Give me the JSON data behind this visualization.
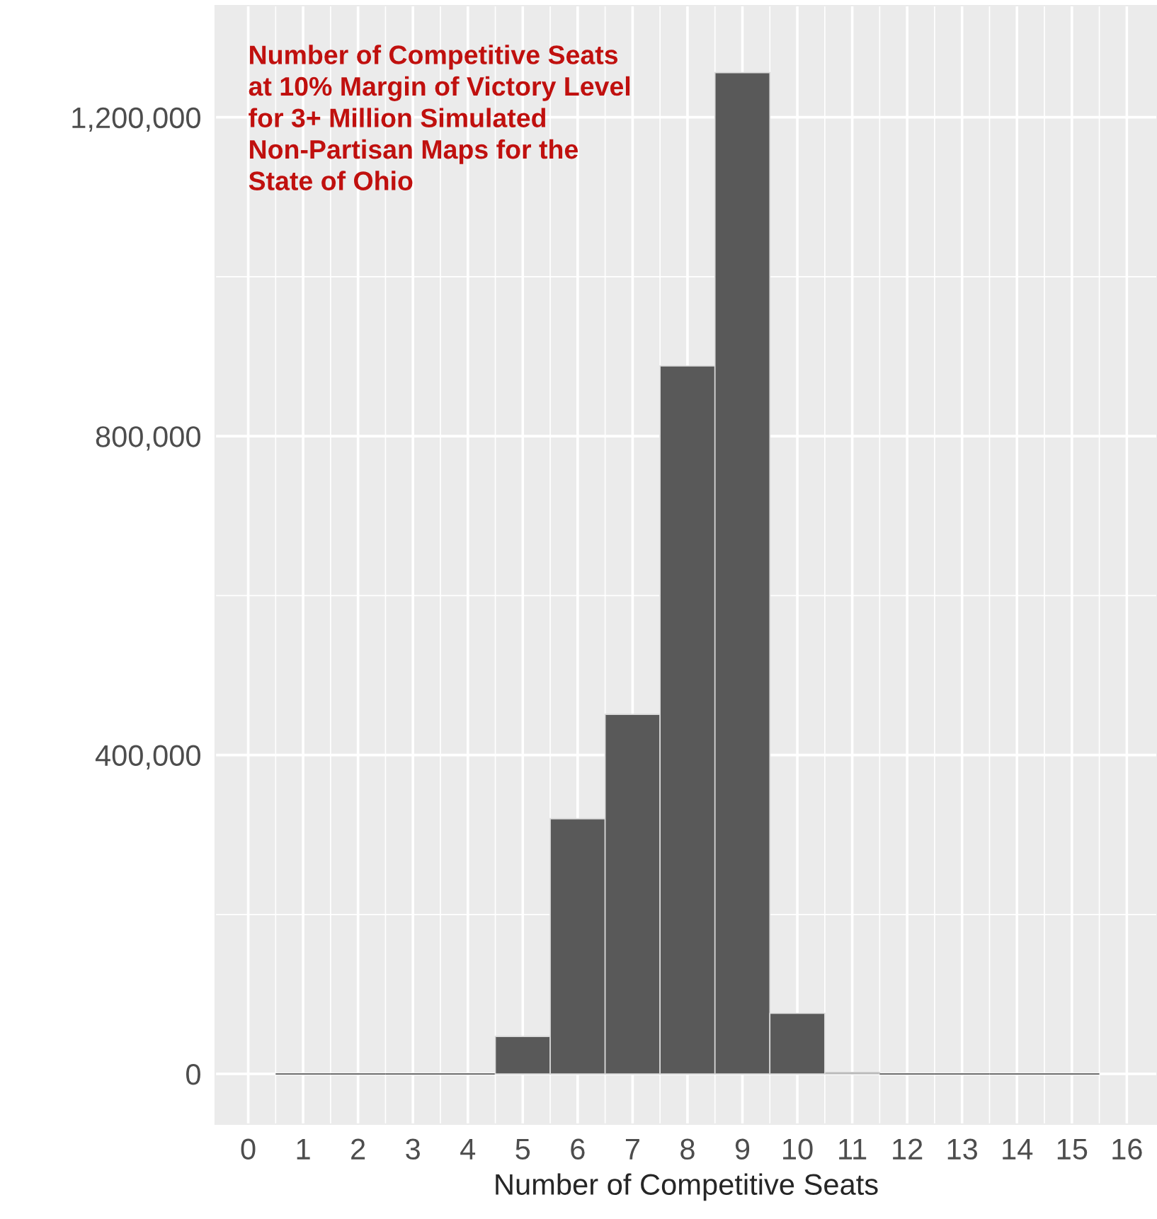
{
  "chart_data": {
    "type": "histogram",
    "bins": [
      0.5,
      1.5,
      2.5,
      3.5,
      4.5,
      5.5,
      6.5,
      7.5,
      8.5,
      9.5,
      10.5,
      11.5,
      12.5,
      13.5,
      14.5,
      15.5
    ],
    "values": [
      0,
      0,
      0,
      0,
      47000,
      320000,
      451000,
      888000,
      1256000,
      76000,
      2000,
      0,
      0,
      0,
      0
    ],
    "color": "#595959",
    "xlabel": "Number of Competitive Seats",
    "annotations": [
      "Number of Competitive Seats\nat 10% Margin of Victory Level\nfor 3+ Million Simulated\nNon-Partisan Maps for the\nState of Ohio"
    ],
    "xlim": [
      -0.6,
      16.55
    ],
    "xticks": [
      0,
      1,
      2,
      3,
      4,
      5,
      6,
      7,
      8,
      9,
      10,
      11,
      12,
      13,
      14,
      15,
      16
    ],
    "ylim": [
      -63000,
      1340000
    ],
    "yticks": [
      {
        "value": 0,
        "label": "0"
      },
      {
        "value": 400000,
        "label": "400,000"
      },
      {
        "value": 800000,
        "label": "800,000"
      },
      {
        "value": 1200000,
        "label": "1,200,000"
      }
    ],
    "grid": true
  }
}
